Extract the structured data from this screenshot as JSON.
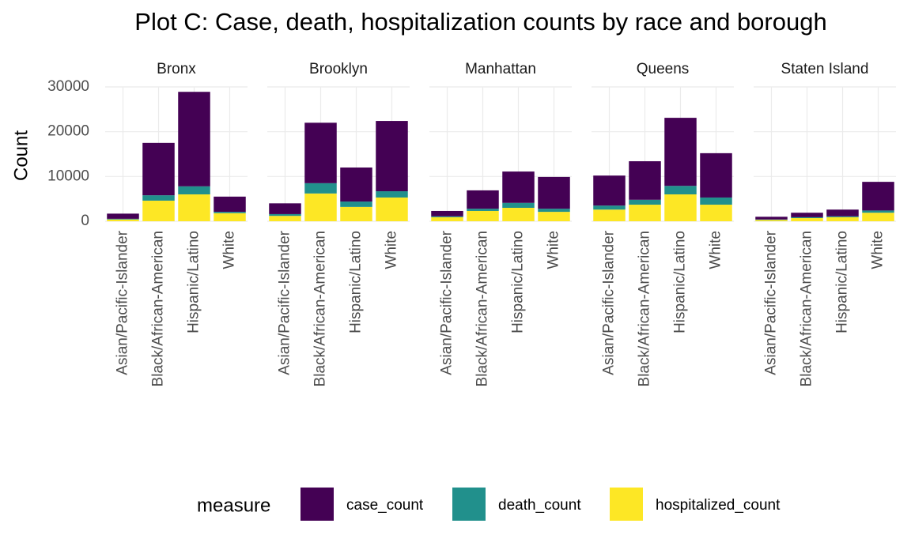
{
  "title": "Plot C: Case, death, hospitalization counts by race and borough",
  "y_label": "Count",
  "legend_title": "measure",
  "chart_data": [
    {
      "type": "bar",
      "stacked": true,
      "title": "Bronx",
      "categories": [
        "Asian/Pacific-Islander",
        "Black/African-American",
        "Hispanic/Latino",
        "White"
      ],
      "series": [
        {
          "name": "case_count",
          "color": "#440154",
          "values": [
            1150,
            11700,
            21100,
            3400
          ]
        },
        {
          "name": "death_count",
          "color": "#21908c",
          "values": [
            150,
            1200,
            1800,
            300
          ]
        },
        {
          "name": "hospitalized_count",
          "color": "#fde725",
          "values": [
            400,
            4600,
            6000,
            1800
          ]
        }
      ],
      "ylim": [
        0,
        30000
      ],
      "yticks": [
        0,
        10000,
        20000,
        30000
      ],
      "grid": true
    },
    {
      "type": "bar",
      "stacked": true,
      "title": "Brooklyn",
      "categories": [
        "Asian/Pacific-Islander",
        "Black/African-American",
        "Hispanic/Latino",
        "White"
      ],
      "series": [
        {
          "name": "case_count",
          "color": "#440154",
          "values": [
            2400,
            13500,
            7600,
            15700
          ]
        },
        {
          "name": "death_count",
          "color": "#21908c",
          "values": [
            400,
            2300,
            1200,
            1400
          ]
        },
        {
          "name": "hospitalized_count",
          "color": "#fde725",
          "values": [
            1200,
            6200,
            3200,
            5300
          ]
        }
      ],
      "ylim": [
        0,
        30000
      ],
      "yticks": [
        0,
        10000,
        20000,
        30000
      ],
      "grid": true
    },
    {
      "type": "bar",
      "stacked": true,
      "title": "Manhattan",
      "categories": [
        "Asian/Pacific-Islander",
        "Black/African-American",
        "Hispanic/Latino",
        "White"
      ],
      "series": [
        {
          "name": "case_count",
          "color": "#440154",
          "values": [
            1200,
            4100,
            7000,
            7100
          ]
        },
        {
          "name": "death_count",
          "color": "#21908c",
          "values": [
            200,
            500,
            1100,
            700
          ]
        },
        {
          "name": "hospitalized_count",
          "color": "#fde725",
          "values": [
            900,
            2300,
            3000,
            2100
          ]
        }
      ],
      "ylim": [
        0,
        30000
      ],
      "yticks": [
        0,
        10000,
        20000,
        30000
      ],
      "grid": true
    },
    {
      "type": "bar",
      "stacked": true,
      "title": "Queens",
      "categories": [
        "Asian/Pacific-Islander",
        "Black/African-American",
        "Hispanic/Latino",
        "White"
      ],
      "series": [
        {
          "name": "case_count",
          "color": "#440154",
          "values": [
            6700,
            8600,
            15200,
            9900
          ]
        },
        {
          "name": "death_count",
          "color": "#21908c",
          "values": [
            900,
            1100,
            1900,
            1600
          ]
        },
        {
          "name": "hospitalized_count",
          "color": "#fde725",
          "values": [
            2600,
            3700,
            6000,
            3700
          ]
        }
      ],
      "ylim": [
        0,
        30000
      ],
      "yticks": [
        0,
        10000,
        20000,
        30000
      ],
      "grid": true
    },
    {
      "type": "bar",
      "stacked": true,
      "title": "Staten Island",
      "categories": [
        "Asian/Pacific-Islander",
        "Black/African-American",
        "Hispanic/Latino",
        "White"
      ],
      "series": [
        {
          "name": "case_count",
          "color": "#440154",
          "values": [
            600,
            1000,
            1500,
            6400
          ]
        },
        {
          "name": "death_count",
          "color": "#21908c",
          "values": [
            100,
            200,
            200,
            500
          ]
        },
        {
          "name": "hospitalized_count",
          "color": "#fde725",
          "values": [
            300,
            700,
            900,
            1900
          ]
        }
      ],
      "ylim": [
        0,
        30000
      ],
      "yticks": [
        0,
        10000,
        20000,
        30000
      ],
      "grid": true
    }
  ]
}
